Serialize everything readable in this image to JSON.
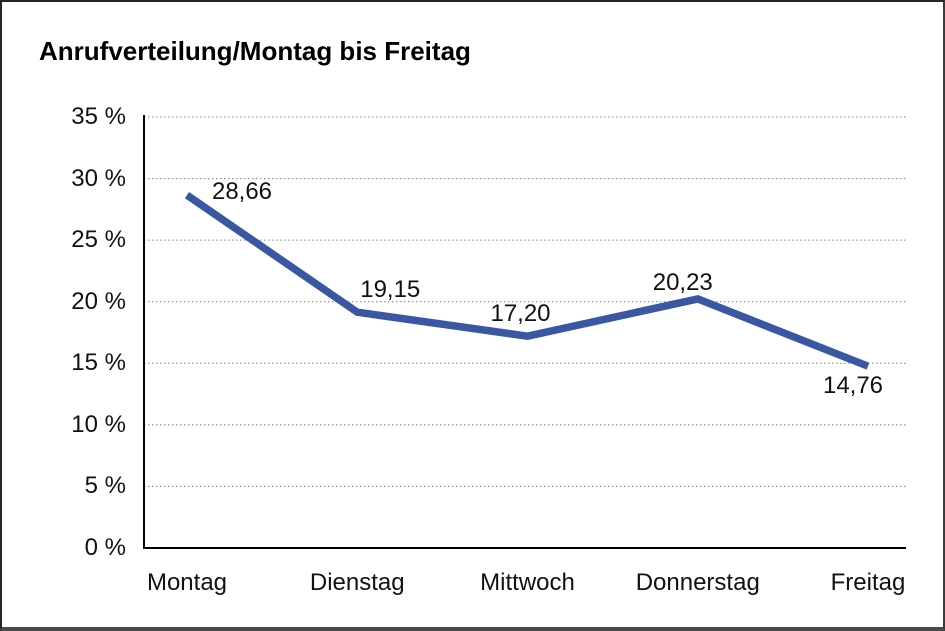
{
  "chart_data": {
    "type": "line",
    "title": "Anrufverteilung/Montag bis Freitag",
    "categories": [
      "Montag",
      "Dienstag",
      "Mittwoch",
      "Donnerstag",
      "Freitag"
    ],
    "series": [
      {
        "name": "Anrufverteilung",
        "values": [
          28.66,
          19.15,
          17.2,
          20.23,
          14.76
        ]
      }
    ],
    "point_labels": [
      "28,66",
      "19,15",
      "17,20",
      "20,23",
      "14,76"
    ],
    "y_ticks": [
      "0 %",
      "5 %",
      "10 %",
      "15 %",
      "20 %",
      "25 %",
      "30 %",
      "35 %"
    ],
    "ytick_step": 5,
    "ylim": [
      0,
      35
    ],
    "xlabel": "",
    "ylabel": "",
    "grid": "horizontal-dotted",
    "legend": "none",
    "line_color": "#3a57a3",
    "axis_color": "#000000",
    "grid_color": "#7f7f7f",
    "text_color": "#111111"
  }
}
